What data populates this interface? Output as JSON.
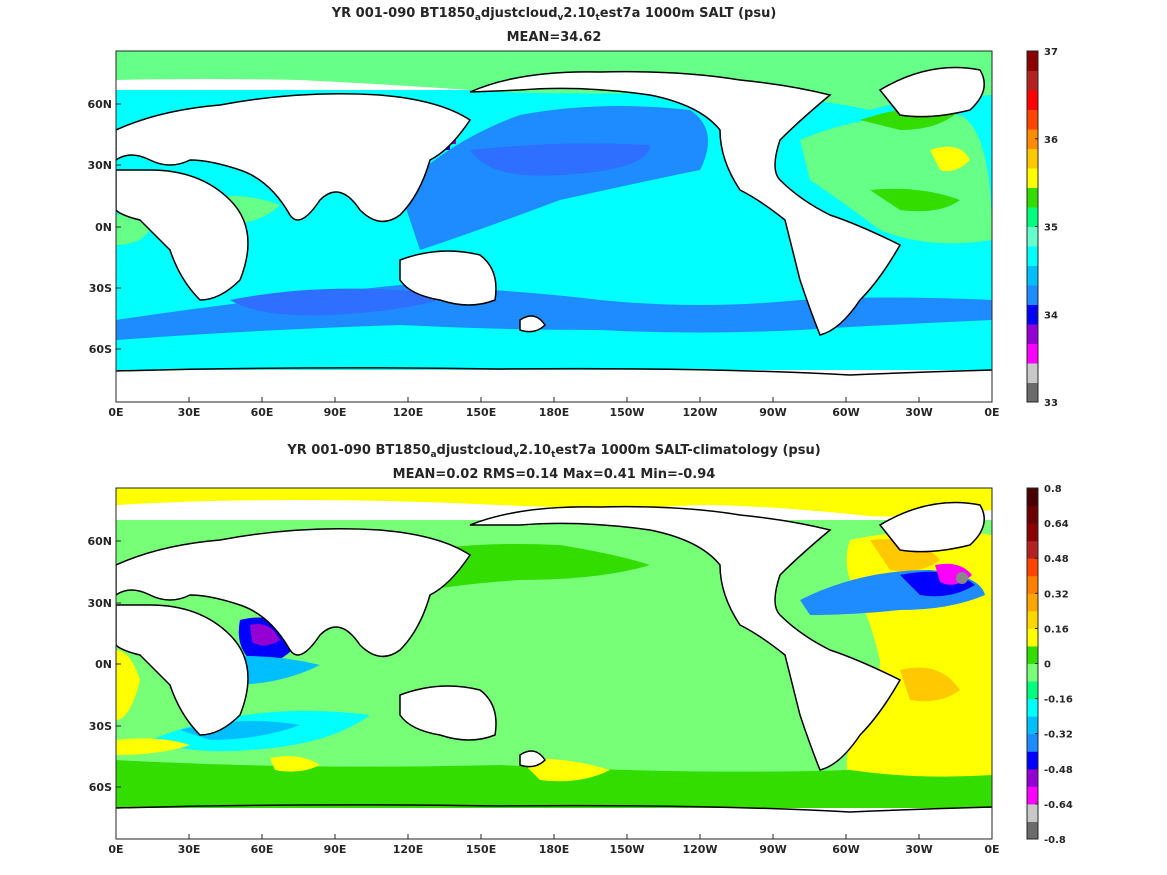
{
  "chart_data": [
    {
      "type": "heatmap",
      "title_parts": [
        "YR 001-090 BT1850",
        "a",
        "djustcloud",
        "v",
        "2.10",
        "t",
        "est7a 1000m SALT (psu)"
      ],
      "subtitle": "MEAN=34.62",
      "x_ticks": [
        "0E",
        "30E",
        "60E",
        "90E",
        "120E",
        "150E",
        "180E",
        "150W",
        "120W",
        "90W",
        "60W",
        "30W",
        "0E"
      ],
      "y_ticks": [
        "60N",
        "30N",
        "0N",
        "30S",
        "60S"
      ],
      "colorbar": {
        "ticks": [
          "37",
          "36",
          "35",
          "34",
          "33"
        ],
        "colors": [
          "#6b6b6b",
          "#c8c8c8",
          "#ff00ff",
          "#9400d3",
          "#0000ff",
          "#1e8cff",
          "#00bfff",
          "#00ffff",
          "#66ffcc",
          "#00ff7f",
          "#33dd00",
          "#ffff00",
          "#ffc800",
          "#ff8c00",
          "#ff4500",
          "#ff0000",
          "#b22222",
          "#8b0000"
        ]
      },
      "mean": 34.62
    },
    {
      "type": "heatmap",
      "title_parts": [
        "YR 001-090 BT1850",
        "a",
        "djustcloud",
        "v",
        "2.10",
        "t",
        "est7a 1000m SALT-climatology (psu)"
      ],
      "subtitle": "MEAN=0.02   RMS=0.14   Max=0.41   Min=-0.94",
      "x_ticks": [
        "0E",
        "30E",
        "60E",
        "90E",
        "120E",
        "150E",
        "180E",
        "150W",
        "120W",
        "90W",
        "60W",
        "30W",
        "0E"
      ],
      "y_ticks": [
        "60N",
        "30N",
        "0N",
        "30S",
        "60S"
      ],
      "colorbar": {
        "ticks": [
          "0.8",
          "0.64",
          "0.48",
          "0.32",
          "0.16",
          "0",
          "-0.16",
          "-0.32",
          "-0.48",
          "-0.64",
          "-0.8"
        ],
        "colors": [
          "#6b6b6b",
          "#c8c8c8",
          "#ff00ff",
          "#9400d3",
          "#0000ff",
          "#1e8cff",
          "#00bfff",
          "#00ffff",
          "#00ff7f",
          "#77ff77",
          "#33dd00",
          "#ffff00",
          "#ffd700",
          "#ffa500",
          "#ff7f00",
          "#ff4500",
          "#b22222",
          "#8b0000",
          "#6b0000",
          "#4b0000"
        ]
      },
      "mean": 0.02,
      "rms": 0.14,
      "max": 0.41,
      "min": -0.94
    }
  ]
}
